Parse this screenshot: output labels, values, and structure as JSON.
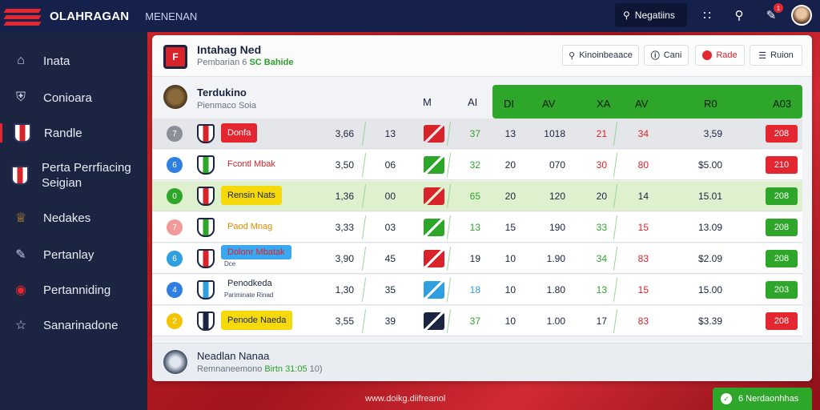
{
  "topbar": {
    "brand": "OLAHRAGAN",
    "subtitle": "MENENAN",
    "search_label": "Negatiins",
    "notification_count": "1"
  },
  "sidebar": {
    "items": [
      {
        "label": "Inata",
        "icon": "home-icon"
      },
      {
        "label": "Conioara",
        "icon": "shield-icon"
      },
      {
        "label": "Randle",
        "icon": "flag-icon",
        "active": true
      },
      {
        "label": "Perta Perrfiacing Seigian",
        "icon": "flag-icon"
      },
      {
        "label": "Nedakes",
        "icon": "trophy-icon"
      },
      {
        "label": "Pertanlay",
        "icon": "pen-icon"
      },
      {
        "label": "Pertanniding",
        "icon": "badge-icon"
      },
      {
        "label": "Sanarinadone",
        "icon": "star-icon"
      }
    ]
  },
  "panel": {
    "title": "Intahag Ned",
    "subtitle_prefix": "Pembarian 6 ",
    "subtitle_live": "SC Bahide",
    "buttons": [
      {
        "label": "Kinoinbeaace",
        "icon": "search-icon"
      },
      {
        "label": "Cani",
        "icon": "info-icon"
      },
      {
        "label": "Rade",
        "icon": "record-icon"
      },
      {
        "label": "Ruion",
        "icon": "filter-icon"
      }
    ]
  },
  "table": {
    "header_title": "Terdukino",
    "header_sub": "Pienmaco Soia",
    "columns_plain": [
      "M",
      "AI"
    ],
    "columns_green": [
      "DI",
      "AV",
      "XA",
      "AV",
      "R0",
      "A03"
    ],
    "rows": [
      {
        "rank": "7",
        "rank_color": "#8a8f99",
        "team": "Donfa",
        "sub": "",
        "name_bg": "#e3262f",
        "name_fg": "#ffffff",
        "a": "3,66",
        "b": "13",
        "sym_color": "#d8232b",
        "c1": "37",
        "c2": "13",
        "c3": "1018",
        "c4": "21",
        "c5": "34",
        "c6": "3,59",
        "pts": "208",
        "pts_bg": "#e3262f",
        "c1c": "#2ea62a",
        "c4c": "#d8232b",
        "c5c": "#d8232b",
        "bg": "#e4e6ea"
      },
      {
        "rank": "6",
        "rank_color": "#2f7fe0",
        "team": "Fcontl Mbak",
        "sub": "",
        "name_bg": "transparent",
        "name_fg": "#d8232b",
        "a": "3,50",
        "b": "06",
        "sym_color": "#2ea62a",
        "c1": "32",
        "c2": "20",
        "c3": "070",
        "c4": "30",
        "c5": "80",
        "c6": "$5.00",
        "pts": "210",
        "pts_bg": "#e3262f",
        "c1c": "#2ea62a",
        "c4c": "#d8232b",
        "c5c": "#d8232b",
        "bg": "#ffffff"
      },
      {
        "rank": "0",
        "rank_color": "#2ea62a",
        "team": "Rensin Nats",
        "sub": "",
        "name_bg": "#f5d90a",
        "name_fg": "#1b2440",
        "a": "1,36",
        "b": "00",
        "sym_color": "#d8232b",
        "c1": "65",
        "c2": "20",
        "c3": "120",
        "c4": "20",
        "c5": "14",
        "c6": "15.01",
        "pts": "208",
        "pts_bg": "#2ea62a",
        "c1c": "#2ea62a",
        "c4c": "#1b2440",
        "c5c": "#1b2440",
        "bg": "#dff0cf"
      },
      {
        "rank": "7",
        "rank_color": "#f29a9a",
        "team": "Paod Mnag",
        "sub": "",
        "name_bg": "transparent",
        "name_fg": "#e38a00",
        "a": "3,33",
        "b": "03",
        "sym_color": "#2ea62a",
        "c1": "13",
        "c2": "15",
        "c3": "190",
        "c4": "33",
        "c5": "15",
        "c6": "13.09",
        "pts": "208",
        "pts_bg": "#2ea62a",
        "c1c": "#2ea62a",
        "c4c": "#2ea62a",
        "c5c": "#d8232b",
        "bg": "#ffffff"
      },
      {
        "rank": "6",
        "rank_color": "#2f9fe0",
        "team": "Dolonr Mbatak",
        "sub": "Dce",
        "name_bg": "#3aa8f0",
        "name_fg": "#d8232b",
        "a": "3,90",
        "b": "45",
        "sym_color": "#d8232b",
        "c1": "19",
        "c2": "10",
        "c3": "1.90",
        "c4": "34",
        "c5": "83",
        "c6": "$2.09",
        "pts": "208",
        "pts_bg": "#2ea62a",
        "c1c": "#1b2440",
        "c4c": "#2ea62a",
        "c5c": "#d8232b",
        "bg": "#ffffff"
      },
      {
        "rank": "4",
        "rank_color": "#2f7fe0",
        "team": "Penodkeda",
        "sub": "Pariminate Rinad",
        "name_bg": "transparent",
        "name_fg": "#1b2440",
        "a": "1,30",
        "b": "35",
        "sym_color": "#2f9fe0",
        "c1": "18",
        "c2": "10",
        "c3": "1.80",
        "c4": "13",
        "c5": "15",
        "c6": "15.00",
        "pts": "203",
        "pts_bg": "#2ea62a",
        "c1c": "#2f9fe0",
        "c4c": "#2ea62a",
        "c5c": "#d8232b",
        "bg": "#ffffff"
      },
      {
        "rank": "2",
        "rank_color": "#f5c400",
        "team": "Penode Naeda",
        "sub": "",
        "name_bg": "#f5d90a",
        "name_fg": "#1b2440",
        "a": "3,55",
        "b": "39",
        "sym_color": "#1b2440",
        "c1": "37",
        "c2": "10",
        "c3": "1.00",
        "c4": "17",
        "c5": "83",
        "c6": "$3.39",
        "pts": "208",
        "pts_bg": "#e3262f",
        "c1c": "#2ea62a",
        "c4c": "#1b2440",
        "c5c": "#d8232b",
        "bg": "#ffffff"
      }
    ]
  },
  "footer": {
    "title": "Neadlan Nanaa",
    "sub_prefix": "Remnaneemono ",
    "sub_live": "Birtn 31:05",
    "sub_suffix": " 10)"
  },
  "url": "www.doikg.diifreanol",
  "cta": {
    "label": "6 Nerdaonhhas"
  }
}
